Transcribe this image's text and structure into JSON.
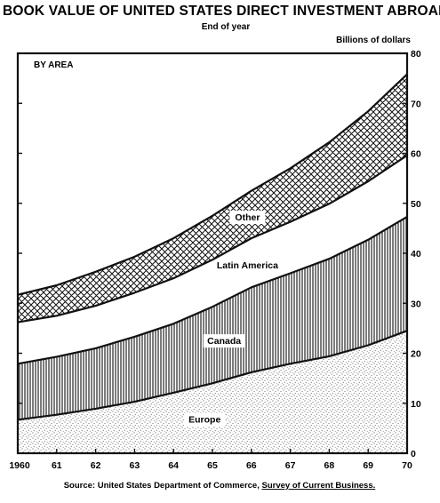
{
  "chart_data": {
    "type": "area",
    "stacked": true,
    "title": "BOOK VALUE OF UNITED STATES DIRECT INVESTMENT ABROAD",
    "subtitle": "End of year",
    "ylabel": "Billions of dollars",
    "panel_label": "BY AREA",
    "source_prefix": "Source: United States Department of Commerce, ",
    "source_publication": "Survey of Current Business.",
    "x": [
      "1960",
      "61",
      "62",
      "63",
      "64",
      "65",
      "66",
      "67",
      "68",
      "69",
      "70"
    ],
    "xlim": [
      1960,
      1970
    ],
    "ylim": [
      0,
      80
    ],
    "yticks": [
      "0",
      "10",
      "20",
      "30",
      "40",
      "50",
      "60",
      "70",
      "80"
    ],
    "series": [
      {
        "name": "Europe",
        "pattern": "stipple",
        "values": [
          6.7,
          7.7,
          8.9,
          10.3,
          12.1,
          14.0,
          16.2,
          17.9,
          19.4,
          21.6,
          24.5
        ]
      },
      {
        "name": "Canada",
        "pattern": "vertical-hatch",
        "values": [
          11.2,
          11.6,
          12.1,
          13.0,
          13.8,
          15.3,
          17.0,
          18.1,
          19.5,
          21.1,
          22.8
        ]
      },
      {
        "name": "Latin America",
        "pattern": "blank",
        "values": [
          8.3,
          8.2,
          8.5,
          8.8,
          9.1,
          9.4,
          9.8,
          10.3,
          11.0,
          11.7,
          12.3
        ]
      },
      {
        "name": "Other",
        "pattern": "crosshatch",
        "values": [
          5.5,
          6.1,
          6.8,
          7.2,
          8.0,
          8.8,
          9.5,
          10.7,
          12.3,
          14.0,
          16.2
        ]
      }
    ],
    "grid": false,
    "legend": "labels inside areas"
  }
}
